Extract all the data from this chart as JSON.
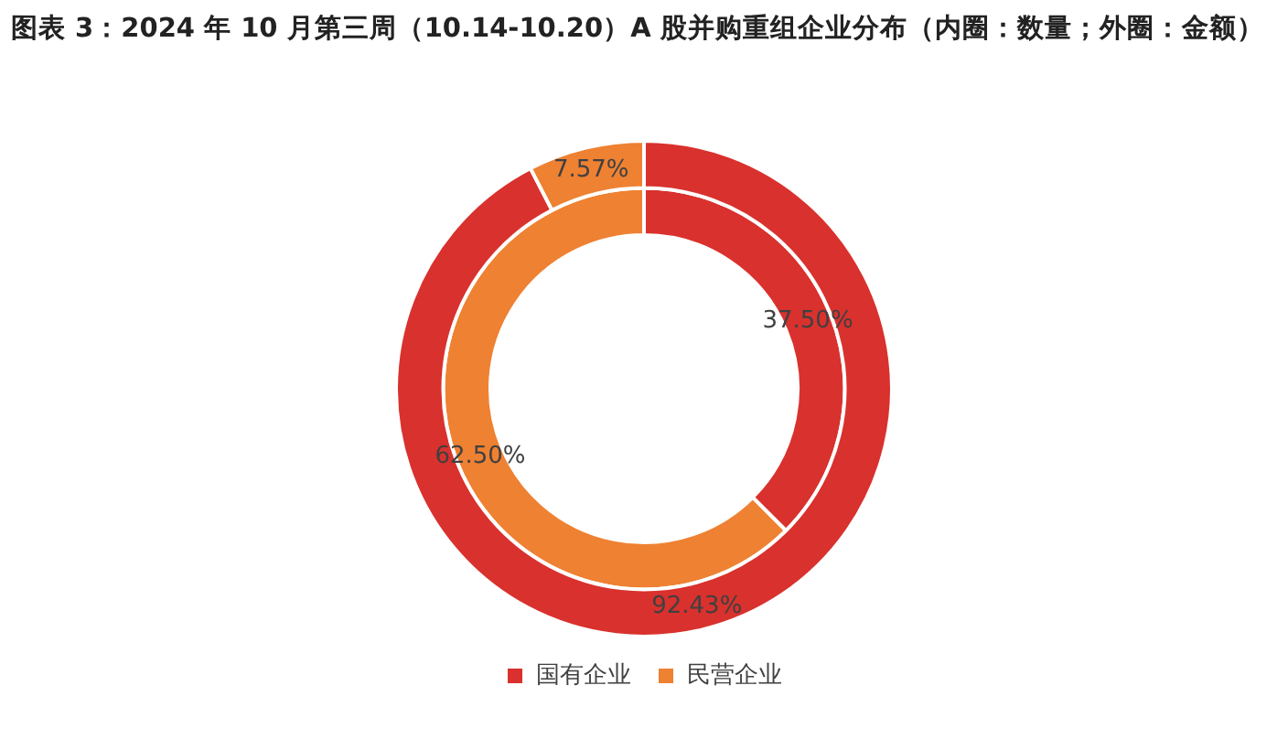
{
  "chart_data": {
    "type": "donut",
    "title": "图表 3：2024 年 10 月第三周（10.14-10.20）A 股并购重组企业分布（内圈：数量；外圈：金额）",
    "categories": [
      "国有企业",
      "民营企业"
    ],
    "series": [
      {
        "values": [
          92.43,
          7.57
        ],
        "colors": [
          "#d9312d",
          "#ee8132"
        ],
        "value_labels": [
          "92.43%",
          "7.57%"
        ]
      },
      {
        "values": [
          37.5,
          62.5
        ],
        "colors": [
          "#d9312d",
          "#ee8132"
        ],
        "value_labels": [
          "37.50%",
          "62.50%"
        ]
      }
    ],
    "legend": "bottom"
  }
}
